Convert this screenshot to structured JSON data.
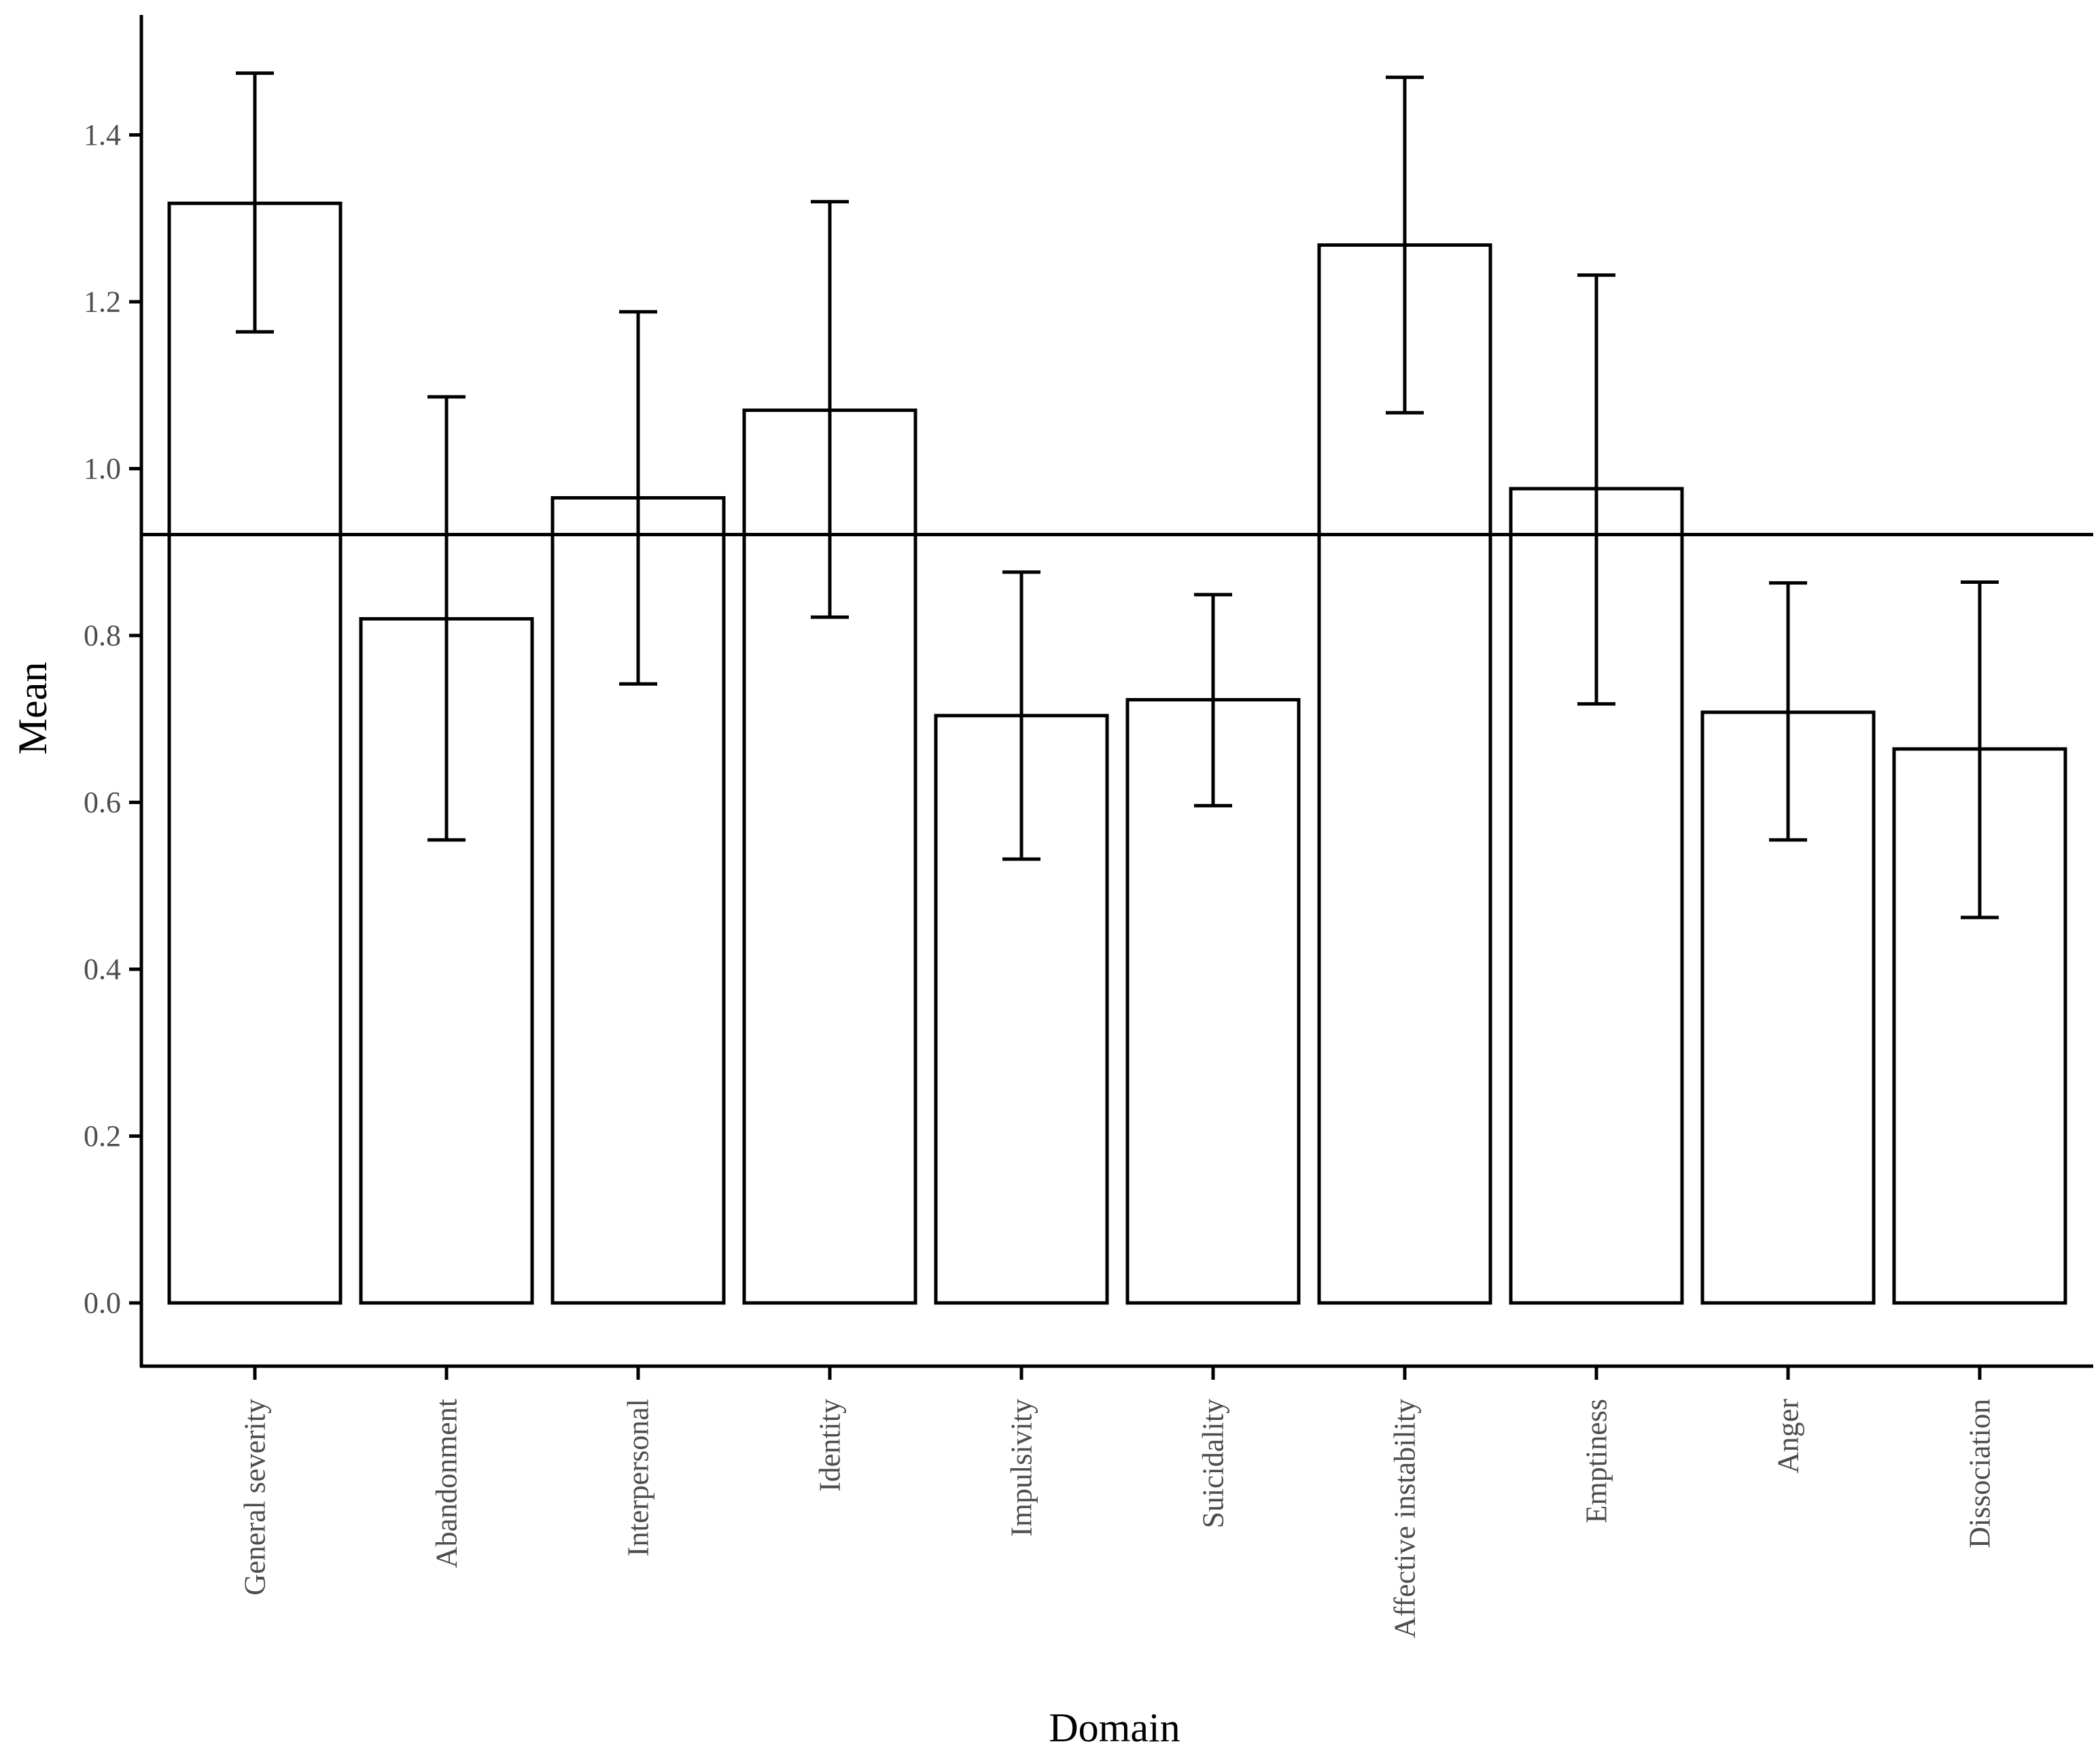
{
  "chart_data": {
    "type": "bar",
    "title": "",
    "xlabel": "Domain",
    "ylabel": "Mean",
    "ylim": [
      -0.075,
      1.54
    ],
    "yticks": [
      0.0,
      0.2,
      0.4,
      0.6,
      0.8,
      1.0,
      1.2,
      1.4
    ],
    "ytick_labels": [
      "0.0",
      "0.2",
      "0.4",
      "0.6",
      "0.8",
      "1.0",
      "1.2",
      "1.4"
    ],
    "categories": [
      "General severity",
      "Abandonment",
      "Interpersonal",
      "Identity",
      "Impulsivity",
      "Suicidality",
      "Affective instability",
      "Emptiness",
      "Anger",
      "Dissociation"
    ],
    "values": [
      1.318,
      0.82,
      0.965,
      1.07,
      0.704,
      0.723,
      1.268,
      0.976,
      0.708,
      0.664
    ],
    "error_low": [
      1.164,
      0.555,
      0.742,
      0.822,
      0.532,
      0.596,
      1.067,
      0.718,
      0.555,
      0.462
    ],
    "error_high": [
      1.474,
      1.086,
      1.188,
      1.32,
      0.876,
      0.849,
      1.469,
      1.232,
      0.863,
      0.864
    ],
    "reference_line": 0.921,
    "grid": false,
    "legend": "none",
    "colors": {
      "bar_fill": "#ffffff",
      "bar_stroke": "#000000",
      "axis": "#000000",
      "tick_text": "#4d4d4d"
    }
  }
}
